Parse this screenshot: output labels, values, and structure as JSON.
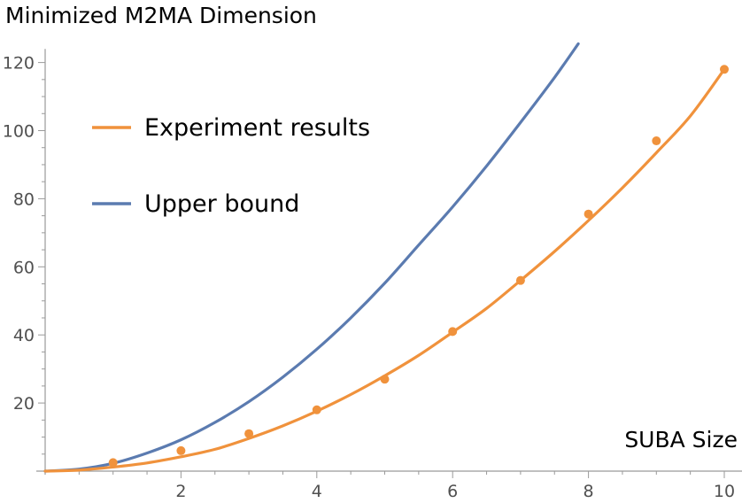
{
  "chart_data": {
    "type": "line",
    "title": "",
    "ylabel": "Minimized M2MA Dimension",
    "xlabel": "SUBA Size",
    "xlim": [
      0,
      10.2
    ],
    "ylim": [
      0,
      124
    ],
    "x_ticks": [
      2,
      4,
      6,
      8,
      10
    ],
    "y_ticks": [
      20,
      40,
      60,
      80,
      100,
      120
    ],
    "x_minor_ticks": [
      0.5,
      1,
      1.5,
      2.5,
      3,
      3.5,
      4.5,
      5,
      5.5,
      6.5,
      7,
      7.5,
      8.5,
      9,
      9.5
    ],
    "y_minor_ticks": [
      5,
      10,
      15,
      25,
      30,
      35,
      45,
      50,
      55,
      65,
      70,
      75,
      85,
      90,
      95,
      105,
      110,
      115
    ],
    "grid": false,
    "legend": "top-left",
    "series": [
      {
        "name": "Experiment results",
        "color": "#f0923c",
        "points_x": [
          1,
          2,
          3,
          4,
          5,
          6,
          7,
          8,
          9,
          10
        ],
        "points_y": [
          2.5,
          6,
          11,
          18,
          27,
          41,
          56,
          75.5,
          97,
          118
        ],
        "fit_x": [
          0,
          0.5,
          1,
          1.5,
          2,
          2.5,
          3,
          3.5,
          4,
          4.5,
          5,
          5.5,
          6,
          6.5,
          7,
          7.5,
          8,
          8.5,
          9,
          9.5,
          10
        ],
        "fit_y": [
          0,
          0.3,
          1.2,
          2.4,
          4.2,
          6.4,
          9.6,
          13.3,
          17.6,
          22.5,
          28,
          34,
          40.8,
          47.8,
          56,
          64.5,
          73.6,
          83.2,
          93.5,
          104.3,
          118
        ]
      },
      {
        "name": "Upper bound",
        "color": "#5b7bb0",
        "x": [
          0,
          0.5,
          1,
          1.5,
          2,
          2.5,
          3,
          3.5,
          4,
          4.5,
          5,
          5.5,
          6,
          6.5,
          7,
          7.5,
          7.85
        ],
        "y": [
          0,
          0.6,
          2.3,
          5.3,
          9.2,
          14.3,
          20.4,
          27.6,
          35.8,
          45,
          55.2,
          66.4,
          77.6,
          89.6,
          102.4,
          115.6,
          125.5
        ]
      }
    ]
  }
}
